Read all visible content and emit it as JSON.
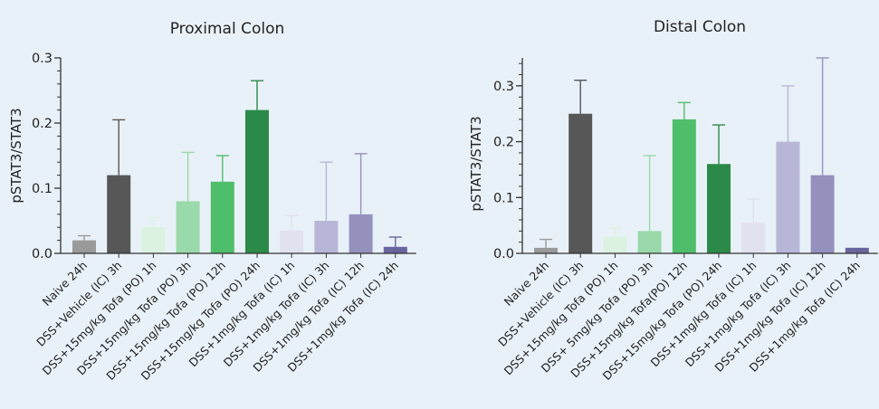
{
  "chart_data": [
    {
      "type": "bar",
      "title": "Proximal Colon",
      "ylabel": "pSTAT3/STAT3",
      "xlabel": "",
      "ylim": [
        0,
        0.3
      ],
      "yticks": [
        "0.0",
        "0.1",
        "0.2",
        "0.3"
      ],
      "categories": [
        "Naive 24h",
        "DSS+Vehicle (IC) 3h",
        "DSS+15mg/kg Tofa (PO) 1h",
        "DSS+15mg/kg Tofa (PO) 3h",
        "DSS+15mg/kg Tofa (PO) 12h",
        "DSS+15mg/kg Tofa (PO) 24h",
        "DSS+1mg/kg Tofa (IC) 1h",
        "DSS+1mg/kg Tofa (IC) 3h",
        "DSS+1mg/kg Tofa (IC) 12h",
        "DSS+1mg/kg Tofa (IC) 24h"
      ],
      "values": [
        0.02,
        0.12,
        0.04,
        0.08,
        0.11,
        0.22,
        0.035,
        0.05,
        0.06,
        0.01
      ],
      "error_upper": [
        0.027,
        0.205,
        0.055,
        0.155,
        0.15,
        0.265,
        0.058,
        0.14,
        0.153,
        0.025
      ],
      "colors": [
        "#9a9a9a",
        "#575757",
        "#dcf2e0",
        "#9ad9a9",
        "#4fbe6a",
        "#2b8a47",
        "#e1e1f0",
        "#b8b6d7",
        "#9491bd",
        "#6a659f"
      ],
      "grid": false
    },
    {
      "type": "bar",
      "title": "Distal Colon",
      "ylabel": "pSTAT3/STAT3",
      "xlabel": "",
      "ylim": [
        0,
        0.35
      ],
      "yticks": [
        "0.0",
        "0.1",
        "0.2",
        "0.3"
      ],
      "categories": [
        "Naive 24h",
        "DSS+Vehicle (IC) 3h",
        "DSS+15mg/kg Tofa (PO) 1h",
        "DSS+ 5mg/kg Tofa (PO) 3h",
        "DSS+15mg/kg Tofa(PO) 12h",
        "DSS+15mg/kg Tofa (PO) 24h",
        "DSS+1mg/kg Tofa (IC) 1h",
        "DSS+1mg/kg Tofa (IC) 3h",
        "DSS+1mg/kg Tofa (IC) 12h",
        "DSS+1mg/kg Tofa (IC) 24h"
      ],
      "values": [
        0.01,
        0.25,
        0.03,
        0.04,
        0.24,
        0.16,
        0.055,
        0.2,
        0.14,
        0.01
      ],
      "error_upper": [
        0.025,
        0.31,
        0.045,
        0.175,
        0.27,
        0.23,
        0.097,
        0.3,
        0.35,
        0.01
      ],
      "colors": [
        "#9a9a9a",
        "#575757",
        "#dcf2e0",
        "#9ad9a9",
        "#4fbe6a",
        "#2b8a47",
        "#e1e1f0",
        "#b8b6d7",
        "#9491bd",
        "#6a659f"
      ],
      "grid": false
    }
  ]
}
